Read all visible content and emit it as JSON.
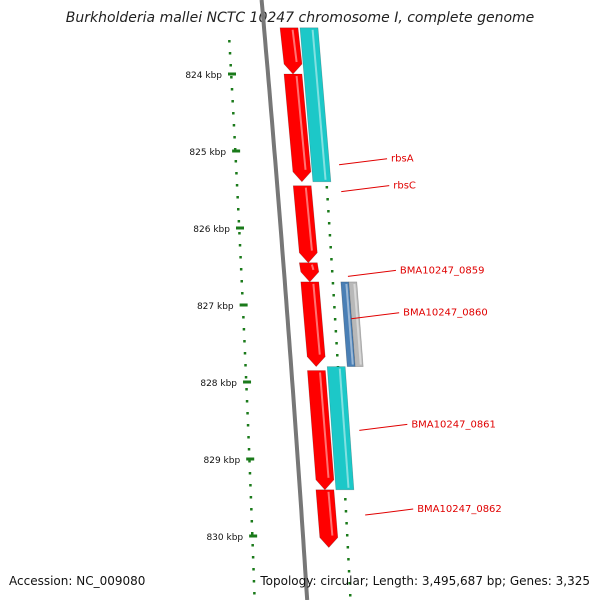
{
  "title": "Burkholderia mallei NCTC 10247 chromosome I, complete genome",
  "footer": {
    "accession": "Accession: NC_009080",
    "stats": "Topology: circular; Length: 3,495,687 bp; Genes: 3,325"
  },
  "ticks": [
    {
      "label": "824 kbp",
      "kbp": 824
    },
    {
      "label": "825 kbp",
      "kbp": 825
    },
    {
      "label": "826 kbp",
      "kbp": 826
    },
    {
      "label": "827 kbp",
      "kbp": 827
    },
    {
      "label": "828 kbp",
      "kbp": 828
    },
    {
      "label": "829 kbp",
      "kbp": 829
    },
    {
      "label": "830 kbp",
      "kbp": 830
    }
  ],
  "gene_labels": [
    {
      "name": "rbsA",
      "kbp": 825.1
    },
    {
      "name": "rbsC",
      "kbp": 825.45
    },
    {
      "name": "BMA10247_0859",
      "kbp": 826.55
    },
    {
      "name": "BMA10247_0860",
      "kbp": 827.1
    },
    {
      "name": "BMA10247_0861",
      "kbp": 828.55
    },
    {
      "name": "BMA10247_0862",
      "kbp": 829.65
    }
  ],
  "genes": [
    {
      "start": 823.4,
      "end": 824.0,
      "track": "red"
    },
    {
      "start": 824.0,
      "end": 825.4,
      "track": "red"
    },
    {
      "start": 825.45,
      "end": 826.45,
      "track": "red"
    },
    {
      "start": 826.45,
      "end": 826.7,
      "track": "red"
    },
    {
      "start": 826.7,
      "end": 827.8,
      "track": "red"
    },
    {
      "start": 827.85,
      "end": 829.4,
      "track": "red"
    },
    {
      "start": 829.4,
      "end": 830.15,
      "track": "red"
    },
    {
      "start": 823.4,
      "end": 825.4,
      "track": "cyan"
    },
    {
      "start": 826.7,
      "end": 827.8,
      "track": "blue"
    },
    {
      "start": 826.7,
      "end": 827.8,
      "track": "gray"
    },
    {
      "start": 827.8,
      "end": 829.4,
      "track": "cyan"
    }
  ],
  "colors": {
    "cds_forward": "#ff0000",
    "cds_reverse": "#1cc8c8",
    "trna_like": "#4a7fb5",
    "other": "#b8b8b8",
    "backbone": "#777777",
    "gc_dots": "#1a7a1a",
    "label_red": "#e00000"
  }
}
